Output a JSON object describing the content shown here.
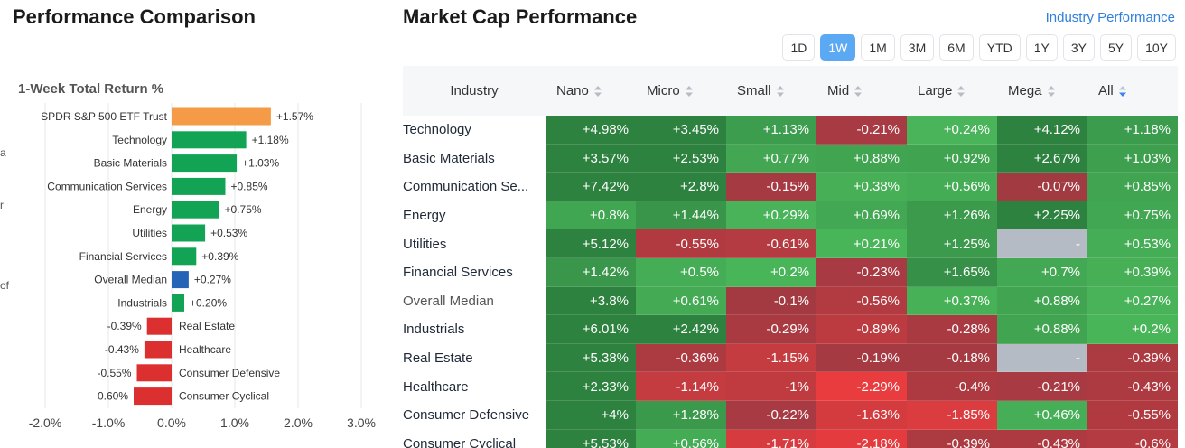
{
  "left": {
    "title": "Performance Comparison",
    "edge_marks": [
      "a",
      "r",
      "of"
    ]
  },
  "right": {
    "title": "Market Cap Performance",
    "link": "Industry Performance",
    "periods": [
      "1D",
      "1W",
      "1M",
      "3M",
      "6M",
      "YTD",
      "1Y",
      "3Y",
      "5Y",
      "10Y"
    ],
    "active_period": "1W",
    "columns": [
      "Industry",
      "Nano",
      "Micro",
      "Small",
      "Mid",
      "Large",
      "Mega",
      "All"
    ],
    "rows": [
      {
        "industry": "Technology",
        "values": [
          "+4.98%",
          "+3.45%",
          "+1.13%",
          "-0.21%",
          "+0.24%",
          "+4.12%",
          "+1.18%"
        ]
      },
      {
        "industry": "Basic Materials",
        "values": [
          "+3.57%",
          "+2.53%",
          "+0.77%",
          "+0.88%",
          "+0.92%",
          "+2.67%",
          "+1.03%"
        ]
      },
      {
        "industry": "Communication Se...",
        "values": [
          "+7.42%",
          "+2.8%",
          "-0.15%",
          "+0.38%",
          "+0.56%",
          "-0.07%",
          "+0.85%"
        ]
      },
      {
        "industry": "Energy",
        "values": [
          "+0.8%",
          "+1.44%",
          "+0.29%",
          "+0.69%",
          "+1.26%",
          "+2.25%",
          "+0.75%"
        ]
      },
      {
        "industry": "Utilities",
        "values": [
          "+5.12%",
          "-0.55%",
          "-0.61%",
          "+0.21%",
          "+1.25%",
          "-",
          "+0.53%"
        ]
      },
      {
        "industry": "Financial Services",
        "values": [
          "+1.42%",
          "+0.5%",
          "+0.2%",
          "-0.23%",
          "+1.65%",
          "+0.7%",
          "+0.39%"
        ]
      },
      {
        "industry": "Overall Median",
        "values": [
          "+3.8%",
          "+0.61%",
          "-0.1%",
          "-0.56%",
          "+0.37%",
          "+0.88%",
          "+0.27%"
        ]
      },
      {
        "industry": "Industrials",
        "values": [
          "+6.01%",
          "+2.42%",
          "-0.29%",
          "-0.89%",
          "-0.28%",
          "+0.88%",
          "+0.2%"
        ]
      },
      {
        "industry": "Real Estate",
        "values": [
          "+5.38%",
          "-0.36%",
          "-1.15%",
          "-0.19%",
          "-0.18%",
          "-",
          "-0.39%"
        ]
      },
      {
        "industry": "Healthcare",
        "values": [
          "+2.33%",
          "-1.14%",
          "-1%",
          "-2.29%",
          "-0.4%",
          "-0.21%",
          "-0.43%"
        ]
      },
      {
        "industry": "Consumer Defensive",
        "values": [
          "+4%",
          "+1.28%",
          "-0.22%",
          "-1.63%",
          "-1.85%",
          "+0.46%",
          "-0.55%"
        ]
      },
      {
        "industry": "Consumer Cyclical",
        "values": [
          "+5.53%",
          "+0.56%",
          "-1.71%",
          "-2.18%",
          "-0.39%",
          "-0.43%",
          "-0.6%"
        ]
      }
    ]
  },
  "colors": {
    "benchmark": "#f59a46",
    "positive": "#12a454",
    "median": "#2563b6",
    "negative": "#dc3030",
    "dash_cell": "#b4bbc4"
  },
  "chart_data": {
    "type": "bar",
    "orientation": "horizontal",
    "title": "1-Week Total Return %",
    "categories": [
      "SPDR S&P 500 ETF Trust",
      "Technology",
      "Basic Materials",
      "Communication Services",
      "Energy",
      "Utilities",
      "Financial Services",
      "Overall Median",
      "Industrials",
      "Real Estate",
      "Healthcare",
      "Consumer Defensive",
      "Consumer Cyclical"
    ],
    "values": [
      1.57,
      1.18,
      1.03,
      0.85,
      0.75,
      0.53,
      0.39,
      0.27,
      0.2,
      -0.39,
      -0.43,
      -0.55,
      -0.6
    ],
    "value_labels": [
      "+1.57%",
      "+1.18%",
      "+1.03%",
      "+0.85%",
      "+0.75%",
      "+0.53%",
      "+0.39%",
      "+0.27%",
      "+0.20%",
      "-0.39%",
      "-0.43%",
      "-0.55%",
      "-0.60%"
    ],
    "bar_kinds": [
      "benchmark",
      "positive",
      "positive",
      "positive",
      "positive",
      "positive",
      "positive",
      "median",
      "positive",
      "negative",
      "negative",
      "negative",
      "negative"
    ],
    "xlim": [
      -2.0,
      3.0
    ],
    "xticks": [
      "-2.0%",
      "-1.0%",
      "0.0%",
      "1.0%",
      "2.0%",
      "3.0%"
    ],
    "grid": true
  }
}
